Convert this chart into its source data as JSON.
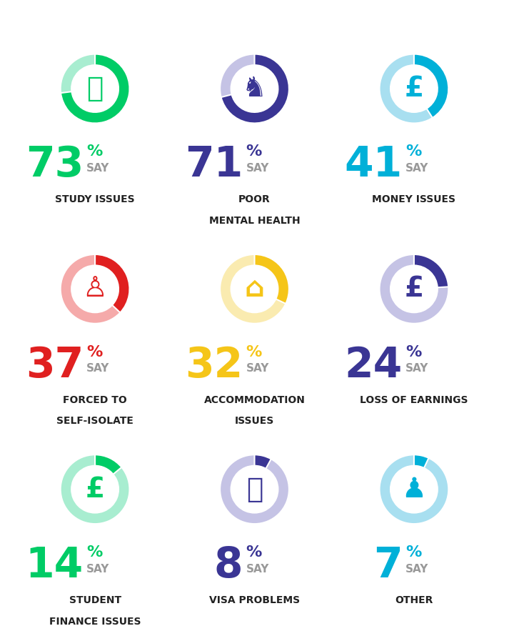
{
  "items": [
    {
      "pct": 73,
      "label": "STUDY ISSUES",
      "label2": "",
      "color_main": "#00CC66",
      "color_bg": "#A8EDD0",
      "icon_color": "#00CC66",
      "num_color": "#00CC66",
      "icon_text": "⎓"
    },
    {
      "pct": 71,
      "label": "POOR",
      "label2": "MENTAL HEALTH",
      "color_main": "#3A3594",
      "color_bg": "#C5C3E5",
      "icon_color": "#3A3594",
      "num_color": "#3A3594",
      "icon_text": "♞"
    },
    {
      "pct": 41,
      "label": "MONEY ISSUES",
      "label2": "",
      "color_main": "#00B0D8",
      "color_bg": "#A8DFF0",
      "icon_color": "#00B0D8",
      "num_color": "#00B0D8",
      "icon_text": "£"
    },
    {
      "pct": 37,
      "label": "FORCED TO",
      "label2": "SELF-ISOLATE",
      "color_main": "#E02020",
      "color_bg": "#F5AAAA",
      "icon_color": "#E02020",
      "num_color": "#E02020",
      "icon_text": "♙"
    },
    {
      "pct": 32,
      "label": "ACCOMMODATION",
      "label2": "ISSUES",
      "color_main": "#F5C518",
      "color_bg": "#FAEBB0",
      "icon_color": "#F5C518",
      "num_color": "#F5C518",
      "icon_text": "⌂"
    },
    {
      "pct": 24,
      "label": "LOSS OF EARNINGS",
      "label2": "",
      "color_main": "#3A3594",
      "color_bg": "#C5C3E5",
      "icon_color": "#3A3594",
      "num_color": "#3A3594",
      "icon_text": "£"
    },
    {
      "pct": 14,
      "label": "STUDENT",
      "label2": "FINANCE ISSUES",
      "color_main": "#00CC66",
      "color_bg": "#A8EDD0",
      "icon_color": "#00CC66",
      "num_color": "#00CC66",
      "icon_text": "£"
    },
    {
      "pct": 8,
      "label": "VISA PROBLEMS",
      "label2": "",
      "color_main": "#3A3594",
      "color_bg": "#C5C3E5",
      "icon_color": "#3A3594",
      "num_color": "#3A3594",
      "icon_text": "⌖"
    },
    {
      "pct": 7,
      "label": "OTHER",
      "label2": "",
      "color_main": "#00B0D8",
      "color_bg": "#A8DFF0",
      "icon_color": "#00B0D8",
      "num_color": "#00B0D8",
      "icon_text": "♟"
    }
  ],
  "bg_color": "#FFFFFF",
  "label_color": "#222222",
  "say_color": "#999999",
  "num_fontsize": 42,
  "pct_fontsize": 16,
  "say_fontsize": 11,
  "label_fontsize": 10,
  "icon_fontsize": 28,
  "donut_outer": 1.0,
  "donut_width": 0.32
}
